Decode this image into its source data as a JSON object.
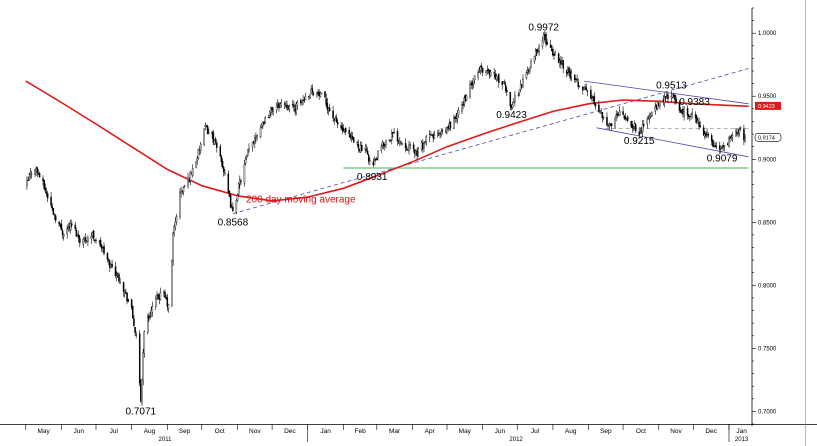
{
  "colors": {
    "candle": "#000000",
    "moving_average": "#e01a1a",
    "support": "#4caf50",
    "channel": "#4a4aa8",
    "trendline": "#4a4aa8",
    "reference": "#9a9a9a"
  },
  "chart_data": {
    "type": "candlestick",
    "title": "",
    "xlabel": "",
    "ylabel": "",
    "ylim": [
      0.69,
      1.02
    ],
    "y_ticks": [
      "1.0000",
      "0.9500",
      "0.9000",
      "0.8500",
      "0.8000",
      "0.7500",
      "0.7000"
    ],
    "x_ticks": [
      "May",
      "Jun",
      "Jul",
      "Aug",
      "Sep",
      "Oct",
      "Nov",
      "Dec",
      "Jan",
      "Feb",
      "Mar",
      "Apr",
      "May",
      "Jun",
      "Jul",
      "Aug",
      "Sep",
      "Oct",
      "Nov",
      "Dec",
      "Jan"
    ],
    "year_labels": [
      "2011",
      "2012",
      "2013"
    ],
    "grid": false,
    "price_path": [
      [
        "2011-05-01",
        0.878
      ],
      [
        "2011-05-08",
        0.895
      ],
      [
        "2011-05-14",
        0.885
      ],
      [
        "2011-05-25",
        0.858
      ],
      [
        "2011-06-02",
        0.842
      ],
      [
        "2011-06-10",
        0.848
      ],
      [
        "2011-06-18",
        0.835
      ],
      [
        "2011-06-28",
        0.84
      ],
      [
        "2011-07-05",
        0.832
      ],
      [
        "2011-07-12",
        0.818
      ],
      [
        "2011-07-22",
        0.805
      ],
      [
        "2011-08-01",
        0.78
      ],
      [
        "2011-08-05",
        0.758
      ],
      [
        "2011-08-09",
        0.708
      ],
      [
        "2011-08-12",
        0.765
      ],
      [
        "2011-08-20",
        0.785
      ],
      [
        "2011-08-28",
        0.795
      ],
      [
        "2011-09-03",
        0.78
      ],
      [
        "2011-09-06",
        0.84
      ],
      [
        "2011-09-12",
        0.872
      ],
      [
        "2011-09-20",
        0.885
      ],
      [
        "2011-09-28",
        0.905
      ],
      [
        "2011-10-04",
        0.925
      ],
      [
        "2011-10-10",
        0.918
      ],
      [
        "2011-10-18",
        0.9
      ],
      [
        "2011-10-25",
        0.868
      ],
      [
        "2011-10-28",
        0.857
      ],
      [
        "2011-11-02",
        0.878
      ],
      [
        "2011-11-10",
        0.905
      ],
      [
        "2011-11-20",
        0.925
      ],
      [
        "2011-12-01",
        0.94
      ],
      [
        "2011-12-10",
        0.945
      ],
      [
        "2011-12-20",
        0.94
      ],
      [
        "2012-01-05",
        0.955
      ],
      [
        "2012-01-15",
        0.948
      ],
      [
        "2012-01-25",
        0.93
      ],
      [
        "2012-02-05",
        0.918
      ],
      [
        "2012-02-15",
        0.91
      ],
      [
        "2012-02-22",
        0.904
      ],
      [
        "2012-02-26",
        0.893
      ],
      [
        "2012-03-05",
        0.91
      ],
      [
        "2012-03-15",
        0.92
      ],
      [
        "2012-03-25",
        0.912
      ],
      [
        "2012-04-05",
        0.905
      ],
      [
        "2012-04-15",
        0.918
      ],
      [
        "2012-04-28",
        0.92
      ],
      [
        "2012-05-10",
        0.935
      ],
      [
        "2012-05-20",
        0.955
      ],
      [
        "2012-05-30",
        0.972
      ],
      [
        "2012-06-10",
        0.968
      ],
      [
        "2012-06-20",
        0.958
      ],
      [
        "2012-06-26",
        0.942
      ],
      [
        "2012-07-05",
        0.96
      ],
      [
        "2012-07-15",
        0.98
      ],
      [
        "2012-07-24",
        0.997
      ],
      [
        "2012-08-01",
        0.985
      ],
      [
        "2012-08-10",
        0.975
      ],
      [
        "2012-08-20",
        0.962
      ],
      [
        "2012-08-30",
        0.955
      ],
      [
        "2012-09-10",
        0.94
      ],
      [
        "2012-09-20",
        0.925
      ],
      [
        "2012-09-28",
        0.94
      ],
      [
        "2012-10-08",
        0.928
      ],
      [
        "2012-10-15",
        0.922
      ],
      [
        "2012-10-25",
        0.935
      ],
      [
        "2012-11-05",
        0.948
      ],
      [
        "2012-11-12",
        0.951
      ],
      [
        "2012-11-20",
        0.938
      ],
      [
        "2012-11-30",
        0.935
      ],
      [
        "2012-12-10",
        0.922
      ],
      [
        "2012-12-18",
        0.912
      ],
      [
        "2012-12-26",
        0.908
      ],
      [
        "2013-01-05",
        0.918
      ],
      [
        "2013-01-10",
        0.925
      ],
      [
        "2013-01-15",
        0.915
      ]
    ],
    "series": [
      {
        "name": "200 day moving average",
        "type": "line",
        "points": [
          [
            "2011-05-01",
            0.962
          ],
          [
            "2011-06-01",
            0.945
          ],
          [
            "2011-07-01",
            0.928
          ],
          [
            "2011-08-01",
            0.91
          ],
          [
            "2011-09-01",
            0.892
          ],
          [
            "2011-10-01",
            0.879
          ],
          [
            "2011-11-01",
            0.871
          ],
          [
            "2011-12-01",
            0.867
          ],
          [
            "2012-01-01",
            0.87
          ],
          [
            "2012-02-01",
            0.877
          ],
          [
            "2012-03-01",
            0.887
          ],
          [
            "2012-04-01",
            0.898
          ],
          [
            "2012-05-01",
            0.91
          ],
          [
            "2012-06-01",
            0.92
          ],
          [
            "2012-07-01",
            0.929
          ],
          [
            "2012-08-01",
            0.938
          ],
          [
            "2012-09-01",
            0.944
          ],
          [
            "2012-10-01",
            0.947
          ],
          [
            "2012-11-01",
            0.946
          ],
          [
            "2012-12-01",
            0.944
          ],
          [
            "2013-01-18",
            0.942
          ]
        ]
      }
    ],
    "lines": [
      {
        "kind": "support",
        "style": "solid",
        "from": [
          "2012-02-01",
          0.8931
        ],
        "to": [
          "2013-01-18",
          0.8931
        ]
      },
      {
        "kind": "trendline",
        "style": "dashed",
        "from": [
          "2011-10-28",
          0.8568
        ],
        "to": [
          "2013-01-18",
          0.972
        ]
      },
      {
        "kind": "channel-upper",
        "style": "solid",
        "from": [
          "2012-08-28",
          0.962
        ],
        "to": [
          "2013-01-18",
          0.944
        ]
      },
      {
        "kind": "channel-lower",
        "style": "solid",
        "from": [
          "2012-09-08",
          0.925
        ],
        "to": [
          "2013-01-18",
          0.902
        ]
      },
      {
        "kind": "reference",
        "style": "dashed",
        "from": [
          "2012-09-15",
          0.9245
        ],
        "to": [
          "2013-01-18",
          0.9245
        ]
      }
    ],
    "annotations": [
      {
        "text": "0.7071",
        "x": "2011-08-09",
        "y": 0.7071,
        "position": "below"
      },
      {
        "text": "0.8568",
        "x": "2011-10-28",
        "y": 0.8568,
        "position": "below"
      },
      {
        "text": "0.8931",
        "x": "2012-02-26",
        "y": 0.8931,
        "position": "below"
      },
      {
        "text": "0.9423",
        "x": "2012-06-26",
        "y": 0.9423,
        "position": "below"
      },
      {
        "text": "0.9972",
        "x": "2012-07-24",
        "y": 0.9972,
        "position": "above"
      },
      {
        "text": "0.9513",
        "x": "2012-11-12",
        "y": 0.9513,
        "position": "above"
      },
      {
        "text": "0.9383",
        "x": "2012-12-02",
        "y": 0.9383,
        "position": "above"
      },
      {
        "text": "0.9215",
        "x": "2012-10-15",
        "y": 0.9215,
        "position": "below"
      },
      {
        "text": "0.9079",
        "x": "2012-12-26",
        "y": 0.9079,
        "position": "below"
      }
    ],
    "price_tags": [
      {
        "text": "0.9423",
        "y": 0.9423,
        "style": "filled"
      },
      {
        "text": "0.9174",
        "y": 0.9174,
        "style": "outline"
      }
    ],
    "ma_label": {
      "text": "200 day moving average",
      "x": "2011-12-26",
      "y": 0.869
    }
  }
}
